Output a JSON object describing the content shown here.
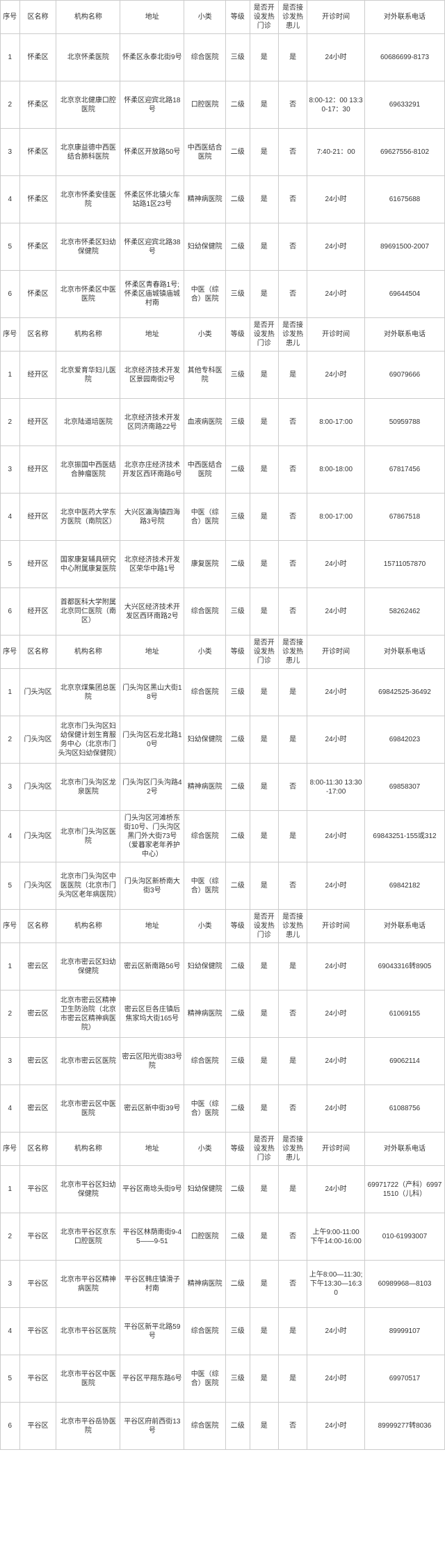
{
  "header": {
    "idx": "序号",
    "area": "区名称",
    "org": "机构名称",
    "addr": "地址",
    "cat": "小类",
    "level": "等级",
    "fever": "是否开设发热门诊",
    "child": "是否接诊发热患儿",
    "hours": "开诊时间",
    "phone": "对外联系电话"
  },
  "sections": [
    {
      "rows": [
        {
          "idx": "1",
          "area": "怀柔区",
          "org": "北京怀柔医院",
          "addr": "怀柔区永泰北街9号",
          "cat": "综合医院",
          "level": "三级",
          "fever": "是",
          "child": "是",
          "hours": "24小时",
          "phone": "60686699-8173"
        },
        {
          "idx": "2",
          "area": "怀柔区",
          "org": "北京京北健康口腔医院",
          "addr": "怀柔区迎宾北路18号",
          "cat": "口腔医院",
          "level": "二级",
          "fever": "是",
          "child": "否",
          "hours": "8:00-12：00 13:30-17：30",
          "phone": "69633291"
        },
        {
          "idx": "3",
          "area": "怀柔区",
          "org": "北京康益德中西医结合肺科医院",
          "addr": "怀柔区开放路50号",
          "cat": "中西医结合医院",
          "level": "二级",
          "fever": "是",
          "child": "否",
          "hours": "7:40-21：00",
          "phone": "69627556-8102"
        },
        {
          "idx": "4",
          "area": "怀柔区",
          "org": "北京市怀柔安佳医院",
          "addr": "怀柔区怀北镇火车站路1区23号",
          "cat": "精神病医院",
          "level": "二级",
          "fever": "是",
          "child": "否",
          "hours": "24小时",
          "phone": "61675688"
        },
        {
          "idx": "5",
          "area": "怀柔区",
          "org": "北京市怀柔区妇幼保健院",
          "addr": "怀柔区迎宾北路38号",
          "cat": "妇幼保健院",
          "level": "二级",
          "fever": "是",
          "child": "否",
          "hours": "24小时",
          "phone": "89691500-2007"
        },
        {
          "idx": "6",
          "area": "怀柔区",
          "org": "北京市怀柔区中医医院",
          "addr": "怀柔区青春路1号;怀柔区庙城镇庙城村南",
          "cat": "中医（综合）医院",
          "level": "三级",
          "fever": "是",
          "child": "否",
          "hours": "24小时",
          "phone": "69644504"
        }
      ]
    },
    {
      "rows": [
        {
          "idx": "1",
          "area": "经开区",
          "org": "北京爱育华妇儿医院",
          "addr": "北京经济技术开发区景园南街2号",
          "cat": "其他专科医院",
          "level": "三级",
          "fever": "是",
          "child": "是",
          "hours": "24小时",
          "phone": "69079666"
        },
        {
          "idx": "2",
          "area": "经开区",
          "org": "北京陆道培医院",
          "addr": "北京经济技术开发区同济南路22号",
          "cat": "血液病医院",
          "level": "三级",
          "fever": "是",
          "child": "否",
          "hours": "8:00-17:00",
          "phone": "50959788"
        },
        {
          "idx": "3",
          "area": "经开区",
          "org": "北京振国中西医结合肿瘤医院",
          "addr": "北京亦庄经济技术开发区西环南路6号",
          "cat": "中西医结合医院",
          "level": "二级",
          "fever": "是",
          "child": "否",
          "hours": "8:00-18:00",
          "phone": "67817456"
        },
        {
          "idx": "4",
          "area": "经开区",
          "org": "北京中医药大学东方医院（南院区）",
          "addr": "大兴区瀛海镇四海路3号院",
          "cat": "中医（综合）医院",
          "level": "三级",
          "fever": "是",
          "child": "否",
          "hours": "8:00-17:00",
          "phone": "67867518"
        },
        {
          "idx": "5",
          "area": "经开区",
          "org": "国家康复辅具研究中心附属康复医院",
          "addr": "北京经济技术开发区荣华中路1号",
          "cat": "康复医院",
          "level": "二级",
          "fever": "是",
          "child": "否",
          "hours": "24小时",
          "phone": "15711057870"
        },
        {
          "idx": "6",
          "area": "经开区",
          "org": "首都医科大学附属北京同仁医院（南区）",
          "addr": "大兴区经济技术开发区西环南路2号",
          "cat": "综合医院",
          "level": "三级",
          "fever": "是",
          "child": "否",
          "hours": "24小时",
          "phone": "58262462"
        }
      ]
    },
    {
      "rows": [
        {
          "idx": "1",
          "area": "门头沟区",
          "org": "北京京煤集团总医院",
          "addr": "门头沟区黑山大街18号",
          "cat": "综合医院",
          "level": "三级",
          "fever": "是",
          "child": "是",
          "hours": "24小时",
          "phone": "69842525-36492"
        },
        {
          "idx": "2",
          "area": "门头沟区",
          "org": "北京市门头沟区妇幼保健计划生育服务中心（北京市门头沟区妇幼保健院）",
          "addr": "门头沟区石龙北路10号",
          "cat": "妇幼保健院",
          "level": "二级",
          "fever": "是",
          "child": "是",
          "hours": "24小时",
          "phone": "69842023"
        },
        {
          "idx": "3",
          "area": "门头沟区",
          "org": "北京市门头沟区龙泉医院",
          "addr": "门头沟区门头沟路42号",
          "cat": "精神病医院",
          "level": "二级",
          "fever": "是",
          "child": "否",
          "hours": "8:00-11:30 13:30-17:00",
          "phone": "69858307"
        },
        {
          "idx": "4",
          "area": "门头沟区",
          "org": "北京市门头沟区医院",
          "addr": "门头沟区河滩桥东街10号、门头沟区黑门外大街73号（爱暮家老年养护中心）",
          "cat": "综合医院",
          "level": "二级",
          "fever": "是",
          "child": "是",
          "hours": "24小时",
          "phone": "69843251-155或312"
        },
        {
          "idx": "5",
          "area": "门头沟区",
          "org": "北京市门头沟区中医医院（北京市门头沟区老年病医院）",
          "addr": "门头沟区新桥南大街3号",
          "cat": "中医（综合）医院",
          "level": "二级",
          "fever": "是",
          "child": "否",
          "hours": "24小时",
          "phone": "69842182"
        }
      ]
    },
    {
      "rows": [
        {
          "idx": "1",
          "area": "密云区",
          "org": "北京市密云区妇幼保健院",
          "addr": "密云区新南路56号",
          "cat": "妇幼保健院",
          "level": "二级",
          "fever": "是",
          "child": "是",
          "hours": "24小时",
          "phone": "69043316转8905"
        },
        {
          "idx": "2",
          "area": "密云区",
          "org": "北京市密云区精神卫生防治院（北京市密云区精神病医院）",
          "addr": "密云区巨各庄镇后焦家坞大街165号",
          "cat": "精神病医院",
          "level": "二级",
          "fever": "是",
          "child": "否",
          "hours": "24小时",
          "phone": "61069155"
        },
        {
          "idx": "3",
          "area": "密云区",
          "org": "北京市密云区医院",
          "addr": "密云区阳光街383号院",
          "cat": "综合医院",
          "level": "三级",
          "fever": "是",
          "child": "是",
          "hours": "24小时",
          "phone": "69062114"
        },
        {
          "idx": "4",
          "area": "密云区",
          "org": "北京市密云区中医医院",
          "addr": "密云区新中街39号",
          "cat": "中医（综合）医院",
          "level": "二级",
          "fever": "是",
          "child": "否",
          "hours": "24小时",
          "phone": "61088756"
        }
      ]
    },
    {
      "rows": [
        {
          "idx": "1",
          "area": "平谷区",
          "org": "北京市平谷区妇幼保健院",
          "addr": "平谷区南埝头街9号",
          "cat": "妇幼保健院",
          "level": "二级",
          "fever": "是",
          "child": "是",
          "hours": "24小时",
          "phone": "69971722（产科）69971510（儿科）"
        },
        {
          "idx": "2",
          "area": "平谷区",
          "org": "北京市平谷区京东口腔医院",
          "addr": "平谷区林荫南街9-45——9-51",
          "cat": "口腔医院",
          "level": "二级",
          "fever": "是",
          "child": "否",
          "hours": "上午9:00-11:00 下午14:00-16:00",
          "phone": "010-61993007"
        },
        {
          "idx": "3",
          "area": "平谷区",
          "org": "北京市平谷区精神病医院",
          "addr": "平谷区韩庄镇滑子村南",
          "cat": "精神病医院",
          "level": "二级",
          "fever": "是",
          "child": "否",
          "hours": "上午8:00—11:30;下午13:30—16:30",
          "phone": "60989968—8103"
        },
        {
          "idx": "4",
          "area": "平谷区",
          "org": "北京市平谷区医院",
          "addr": "平谷区新平北路59号",
          "cat": "综合医院",
          "level": "三级",
          "fever": "是",
          "child": "是",
          "hours": "24小时",
          "phone": "89999107"
        },
        {
          "idx": "5",
          "area": "平谷区",
          "org": "北京市平谷区中医医院",
          "addr": "平谷区平翔东路6号",
          "cat": "中医（综合）医院",
          "level": "三级",
          "fever": "是",
          "child": "是",
          "hours": "24小时",
          "phone": "69970517"
        },
        {
          "idx": "6",
          "area": "平谷区",
          "org": "北京市平谷岳协医院",
          "addr": "平谷区府前西街13号",
          "cat": "综合医院",
          "level": "二级",
          "fever": "是",
          "child": "否",
          "hours": "24小时",
          "phone": "89999277转8036"
        }
      ]
    }
  ]
}
